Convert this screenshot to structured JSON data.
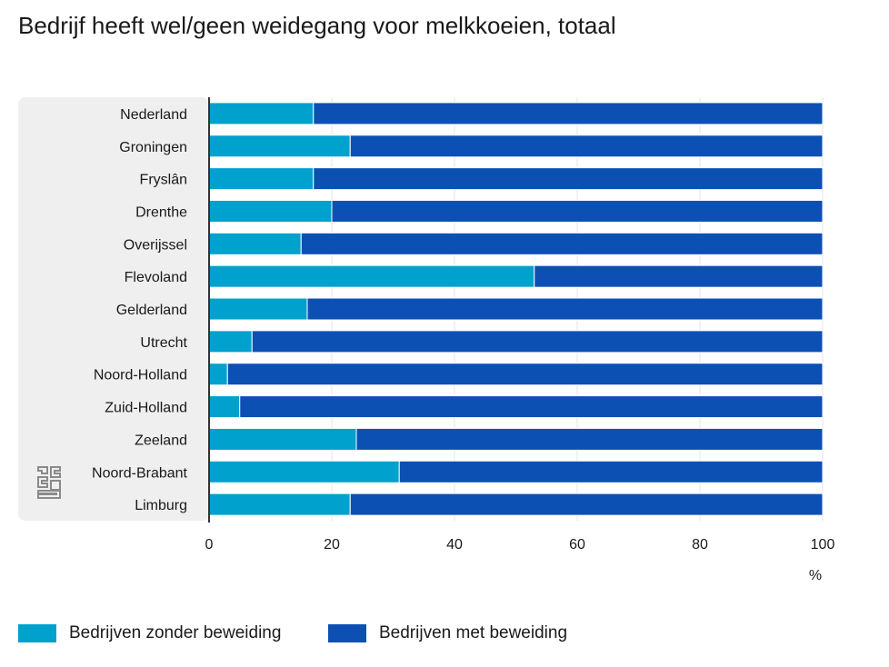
{
  "title": "Bedrijf heeft wel/geen weidegang voor melkkoeien, totaal",
  "logo_icon": "cbs-logo-icon",
  "colors": {
    "zonder": "#00a1cd",
    "met": "#0c50b4",
    "panel": "#efefef",
    "grid": "#e5e5e5",
    "axis": "#333333"
  },
  "chart_data": {
    "type": "bar",
    "orientation": "horizontal",
    "stacked": true,
    "title": "Bedrijf heeft wel/geen weidegang voor melkkoeien, totaal",
    "xlabel": "%",
    "ylabel": "",
    "xlim": [
      0,
      100
    ],
    "xticks": [
      0,
      20,
      40,
      60,
      80,
      100
    ],
    "grid": true,
    "legend_position": "bottom",
    "categories": [
      "Nederland",
      "Groningen",
      "Fryslân",
      "Drenthe",
      "Overijssel",
      "Flevoland",
      "Gelderland",
      "Utrecht",
      "Noord-Holland",
      "Zuid-Holland",
      "Zeeland",
      "Noord-Brabant",
      "Limburg"
    ],
    "series": [
      {
        "name": "Bedrijven zonder beweiding",
        "values": [
          17,
          23,
          17,
          20,
          15,
          53,
          16,
          7,
          3,
          5,
          24,
          31,
          23
        ]
      },
      {
        "name": "Bedrijven met beweiding",
        "values": [
          83,
          77,
          83,
          80,
          85,
          47,
          84,
          93,
          97,
          95,
          76,
          69,
          77
        ]
      }
    ]
  }
}
